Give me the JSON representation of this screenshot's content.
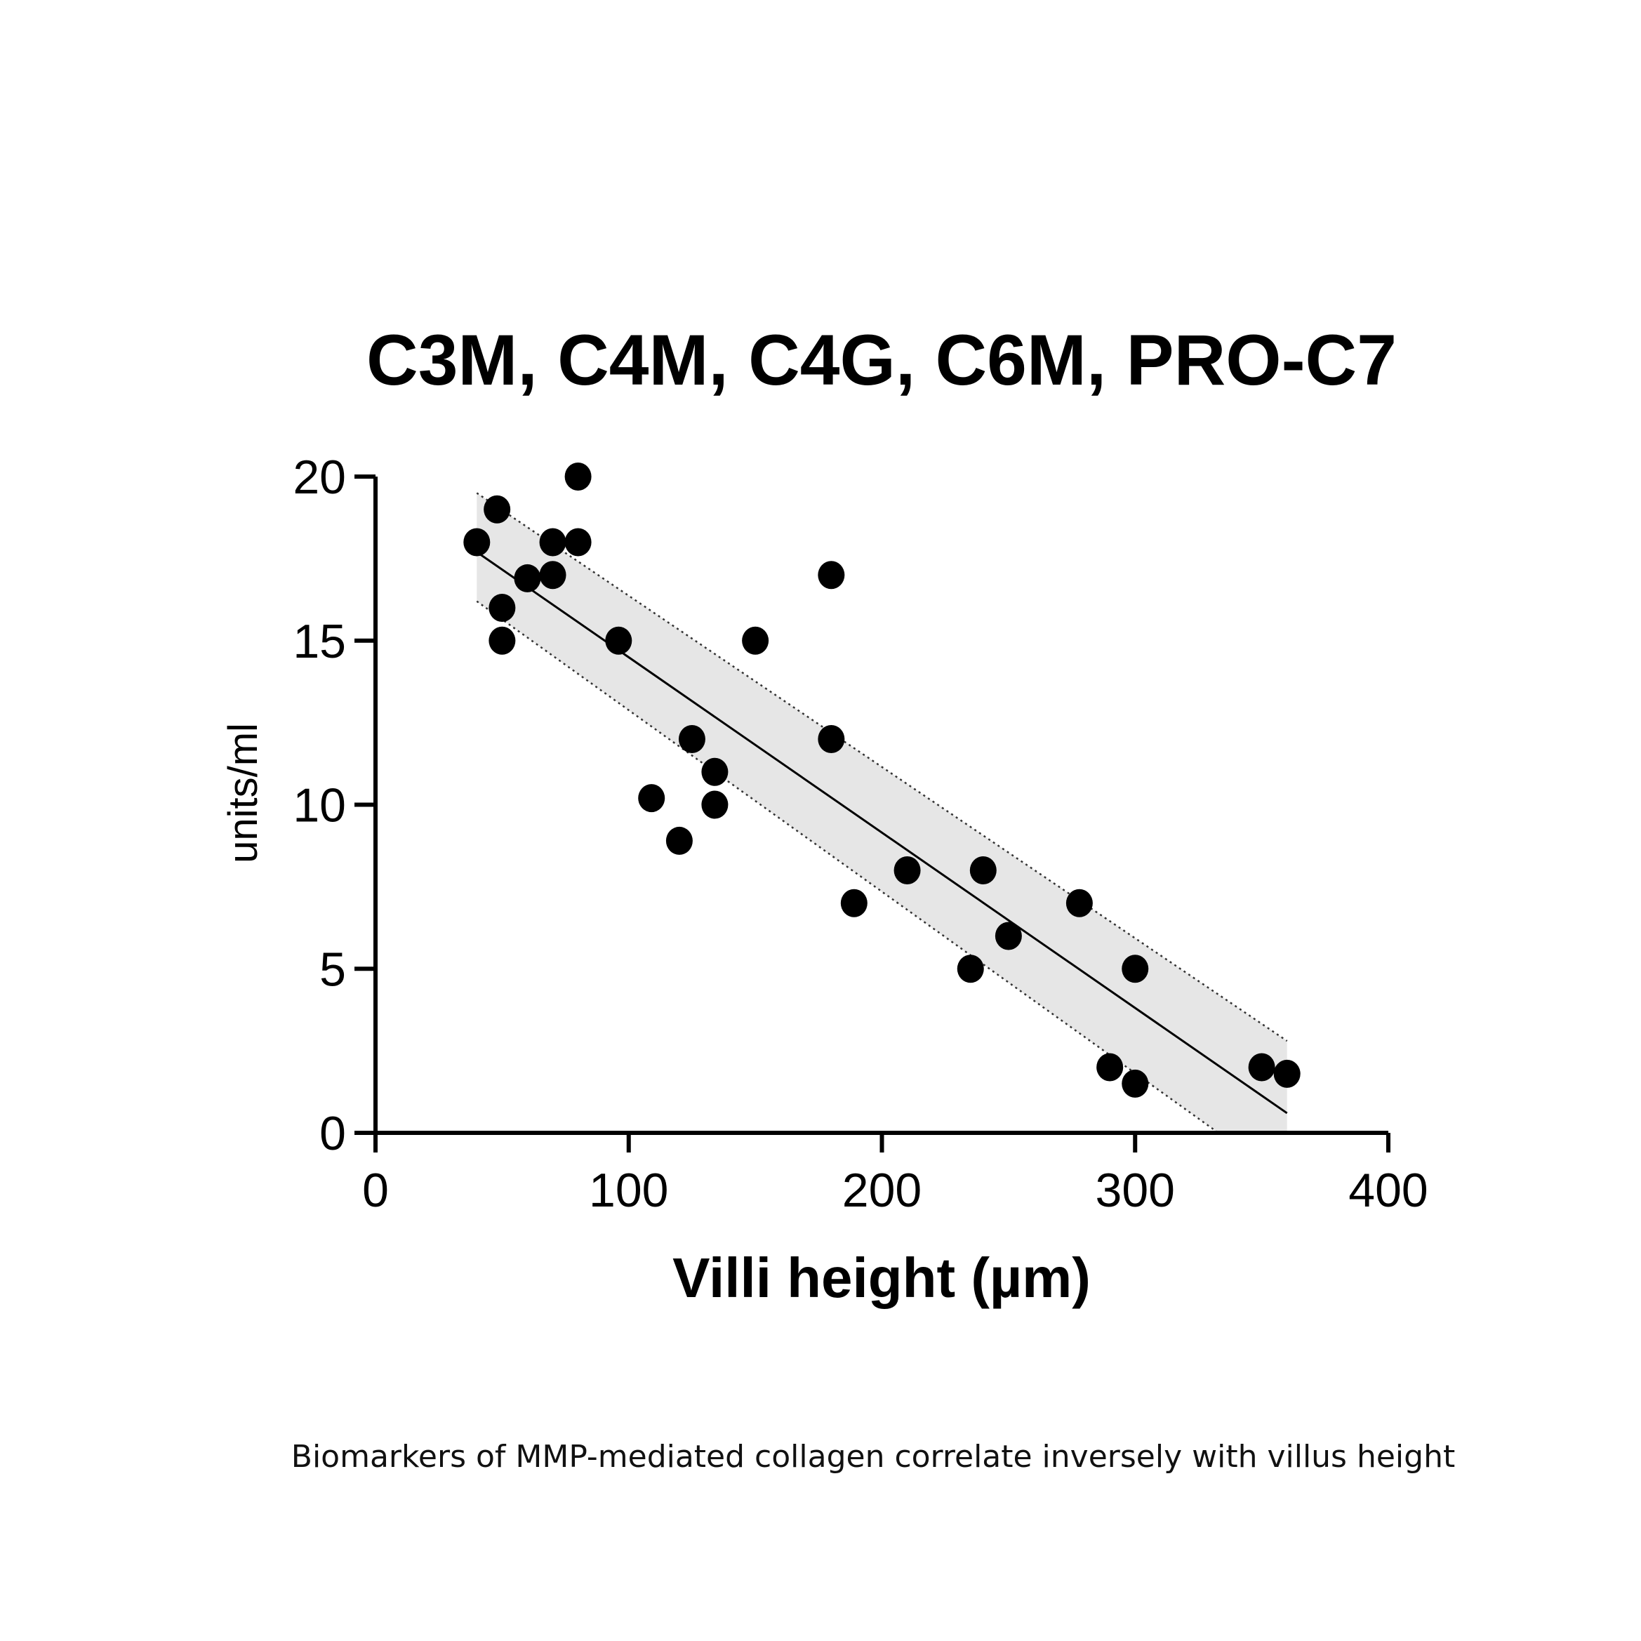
{
  "chart_data": {
    "type": "scatter",
    "title": "C3M, C4M, C4G, C6M,  PRO-C7",
    "xlabel": "Villi height (µm)",
    "ylabel": "units/ml",
    "xlim": [
      0,
      400
    ],
    "ylim": [
      0,
      20
    ],
    "xticks": [
      "0",
      "100",
      "200",
      "300",
      "400"
    ],
    "yticks": [
      "0",
      "5",
      "10",
      "15",
      "20"
    ],
    "grid": false,
    "points": [
      [
        40,
        18
      ],
      [
        48,
        19
      ],
      [
        50,
        16
      ],
      [
        50,
        15
      ],
      [
        60,
        16.9
      ],
      [
        70,
        18
      ],
      [
        70,
        17
      ],
      [
        80,
        20
      ],
      [
        80,
        18
      ],
      [
        96,
        15
      ],
      [
        109,
        10.2
      ],
      [
        120,
        8.9
      ],
      [
        125,
        12
      ],
      [
        134,
        11
      ],
      [
        134,
        10
      ],
      [
        150,
        15
      ],
      [
        180,
        17
      ],
      [
        180,
        12
      ],
      [
        189,
        7
      ],
      [
        210,
        8
      ],
      [
        235,
        5
      ],
      [
        240,
        8
      ],
      [
        250,
        6
      ],
      [
        278,
        7
      ],
      [
        290,
        2
      ],
      [
        300,
        5
      ],
      [
        300,
        1.5
      ],
      [
        350,
        2
      ],
      [
        360,
        1.8
      ]
    ],
    "regression": {
      "x": [
        40,
        360
      ],
      "y": [
        17.7,
        0.6
      ]
    },
    "confidence_band": {
      "x": [
        40,
        360
      ],
      "upper": [
        19.5,
        2.8
      ],
      "lower": [
        16.2,
        -1.5
      ]
    },
    "band_color": "#e6e6e6",
    "point_color": "#000000"
  },
  "caption": "Biomarkers of MMP-mediated collagen correlate inversely with villus height"
}
